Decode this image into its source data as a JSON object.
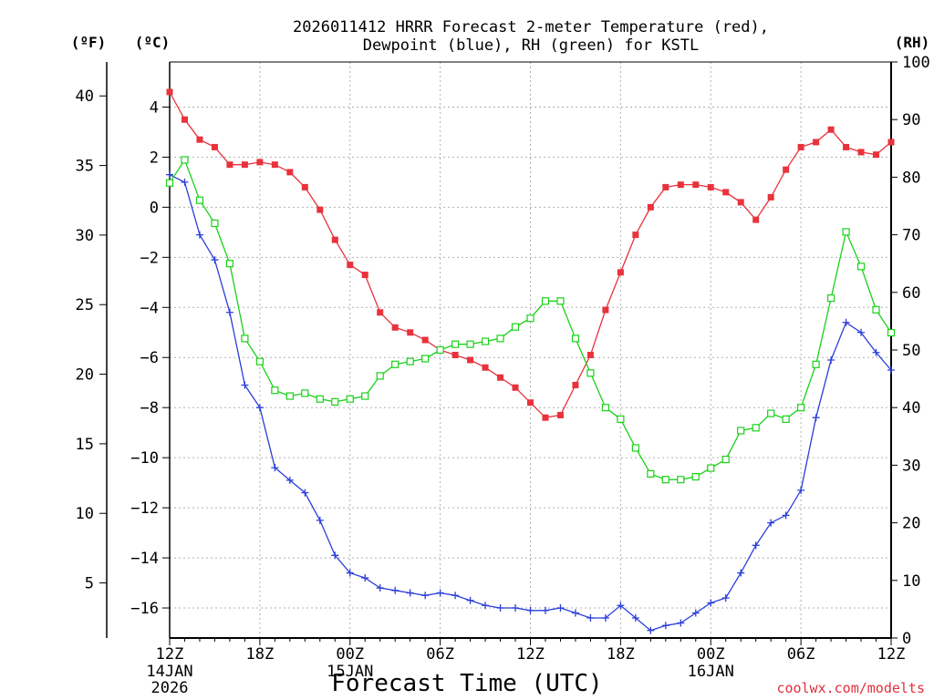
{
  "title": {
    "line1": "2026011412 HRRR Forecast 2-meter Temperature (red),",
    "line2": "Dewpoint (blue), RH (green) for KSTL"
  },
  "axis_units": {
    "fahrenheit": "(ºF)",
    "celsius": "(ºC)",
    "rh": "(RH)"
  },
  "xlabel": "Forecast Time (UTC)",
  "credit": "coolwx.com/modelts",
  "colors": {
    "temperature": "#e8323c",
    "dewpoint": "#2a3fd8",
    "rh": "#19d219",
    "grid": "#b0b0b0",
    "credit": "#e0303c"
  },
  "chart_data": {
    "type": "line",
    "title": "2026011412 HRRR Forecast 2-meter Temperature (red), Dewpoint (blue), RH (green) for KSTL",
    "xlabel": "Forecast Time (UTC)",
    "x_hours": [
      0,
      1,
      2,
      3,
      4,
      5,
      6,
      7,
      8,
      9,
      10,
      11,
      12,
      13,
      14,
      15,
      16,
      17,
      18,
      19,
      20,
      21,
      22,
      23,
      24,
      25,
      26,
      27,
      28,
      29,
      30,
      31,
      32,
      33,
      34,
      35,
      36,
      37,
      38,
      39,
      40,
      41,
      42,
      43,
      44,
      45,
      46,
      47,
      48
    ],
    "x_ticks": [
      {
        "hour": 0,
        "label": "12Z",
        "sub": [
          "14JAN",
          "2026"
        ]
      },
      {
        "hour": 6,
        "label": "18Z",
        "sub": []
      },
      {
        "hour": 12,
        "label": "00Z",
        "sub": [
          "15JAN"
        ]
      },
      {
        "hour": 18,
        "label": "06Z",
        "sub": []
      },
      {
        "hour": 24,
        "label": "12Z",
        "sub": []
      },
      {
        "hour": 30,
        "label": "18Z",
        "sub": []
      },
      {
        "hour": 36,
        "label": "00Z",
        "sub": [
          "16JAN"
        ]
      },
      {
        "hour": 42,
        "label": "06Z",
        "sub": []
      },
      {
        "hour": 48,
        "label": "12Z",
        "sub": []
      }
    ],
    "xlim": [
      0,
      48
    ],
    "y_celsius": {
      "ylim": [
        -17.2,
        5.8
      ],
      "ticks": [
        4,
        2,
        0,
        -2,
        -4,
        -6,
        -8,
        -10,
        -12,
        -14,
        -16
      ]
    },
    "y_fahrenheit": {
      "ticks": [
        40,
        35,
        30,
        25,
        20,
        15,
        10,
        5
      ]
    },
    "y_rh": {
      "ylim": [
        0,
        100
      ],
      "ticks": [
        100,
        90,
        80,
        70,
        60,
        50,
        40,
        30,
        20,
        10,
        0
      ]
    },
    "grid": true,
    "series": [
      {
        "name": "Temperature",
        "axis": "celsius",
        "marker": "filled-square",
        "values": [
          4.6,
          3.5,
          2.7,
          2.4,
          1.7,
          1.7,
          1.8,
          1.7,
          1.4,
          0.8,
          -0.1,
          -1.3,
          -2.3,
          -2.7,
          -4.2,
          -4.8,
          -5.0,
          -5.3,
          -5.7,
          -5.9,
          -6.1,
          -6.4,
          -6.8,
          -7.2,
          -7.8,
          -8.4,
          -8.3,
          -7.1,
          -5.9,
          -4.1,
          -2.6,
          -1.1,
          0,
          0.8,
          0.9,
          0.9,
          0.8,
          0.6,
          0.2,
          -0.5,
          0.4,
          1.5,
          2.4,
          2.6,
          3.1,
          2.4,
          2.2,
          2.1,
          2.6
        ]
      },
      {
        "name": "Dewpoint",
        "axis": "celsius",
        "marker": "plus",
        "values": [
          1.3,
          1.0,
          -1.1,
          -2.1,
          -4.2,
          -7.1,
          -8.0,
          -10.4,
          -10.9,
          -11.4,
          -12.5,
          -13.9,
          -14.6,
          -14.8,
          -15.2,
          -15.3,
          -15.4,
          -15.5,
          -15.4,
          -15.5,
          -15.7,
          -15.9,
          -16.0,
          -16.0,
          -16.1,
          -16.1,
          -16.0,
          -16.2,
          -16.4,
          -16.4,
          -15.9,
          -16.4,
          -16.9,
          -16.7,
          -16.6,
          -16.2,
          -15.8,
          -15.6,
          -14.6,
          -13.5,
          -12.6,
          -12.3,
          -11.3,
          -8.4,
          -6.1,
          -4.6,
          -5.0,
          -5.8,
          -6.5
        ]
      },
      {
        "name": "RH",
        "axis": "rh",
        "marker": "open-square",
        "values": [
          79,
          83,
          76,
          72,
          65,
          52,
          48,
          43,
          42,
          42.5,
          41.5,
          41,
          41.5,
          42,
          45.5,
          47.5,
          48,
          48.5,
          50,
          51,
          51,
          51.5,
          52,
          54,
          55.5,
          58.5,
          58.5,
          52,
          46,
          40,
          38,
          33,
          28.5,
          27.5,
          27.5,
          28,
          29.5,
          31,
          36,
          36.5,
          39,
          38,
          40,
          47.5,
          59,
          70.5,
          64.5,
          57,
          53
        ]
      }
    ]
  }
}
